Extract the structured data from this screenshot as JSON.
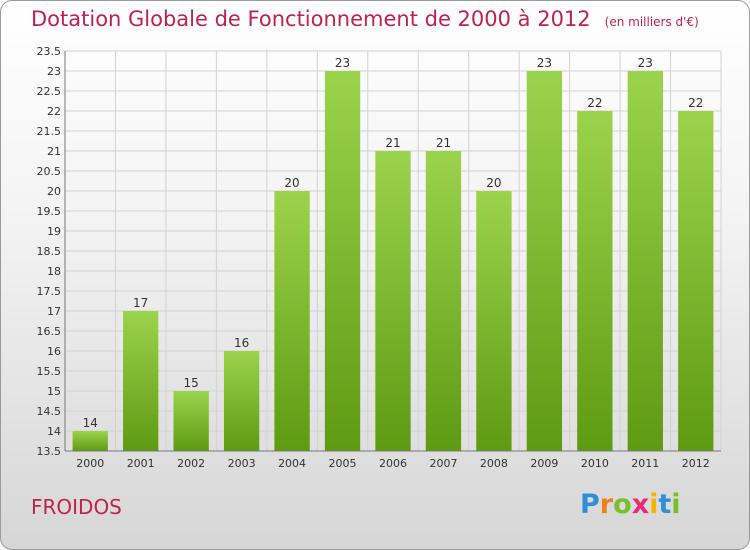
{
  "header": {
    "title": "Dotation Globale de Fonctionnement de 2000 à 2012",
    "unit": "(en milliers d'€)"
  },
  "commune": "FROIDOS",
  "logo": {
    "text": "Proxiti",
    "letters": [
      "P",
      "r",
      "o",
      "x",
      "i",
      "t",
      "i"
    ],
    "colors": [
      "#2f8fd6",
      "#f07f1b",
      "#7cbd2a",
      "#e62b7b",
      "#f2b705",
      "#2f8fd6",
      "#7cbd2a"
    ]
  },
  "colors": {
    "bar_top": "#9bd34c",
    "bar_bottom": "#5f9a13",
    "title": "#c0224f"
  },
  "chart_data": {
    "type": "bar",
    "categories": [
      "2000",
      "2001",
      "2002",
      "2003",
      "2004",
      "2005",
      "2006",
      "2007",
      "2008",
      "2009",
      "2010",
      "2011",
      "2012"
    ],
    "values": [
      14,
      17,
      15,
      16,
      20,
      23,
      21,
      21,
      20,
      23,
      22,
      23,
      22
    ],
    "value_labels": [
      "14",
      "17",
      "15",
      "16",
      "20",
      "23",
      "21",
      "21",
      "20",
      "23",
      "22",
      "23",
      "22"
    ],
    "ylim": [
      13.5,
      23.5
    ],
    "yticks": [
      "13.5",
      "14",
      "14.5",
      "15",
      "15.5",
      "16",
      "16.5",
      "17",
      "17.5",
      "18",
      "18.5",
      "19",
      "19.5",
      "20",
      "20.5",
      "21",
      "21.5",
      "22",
      "22.5",
      "23",
      "23.5"
    ],
    "grid": true,
    "legend": "none"
  }
}
